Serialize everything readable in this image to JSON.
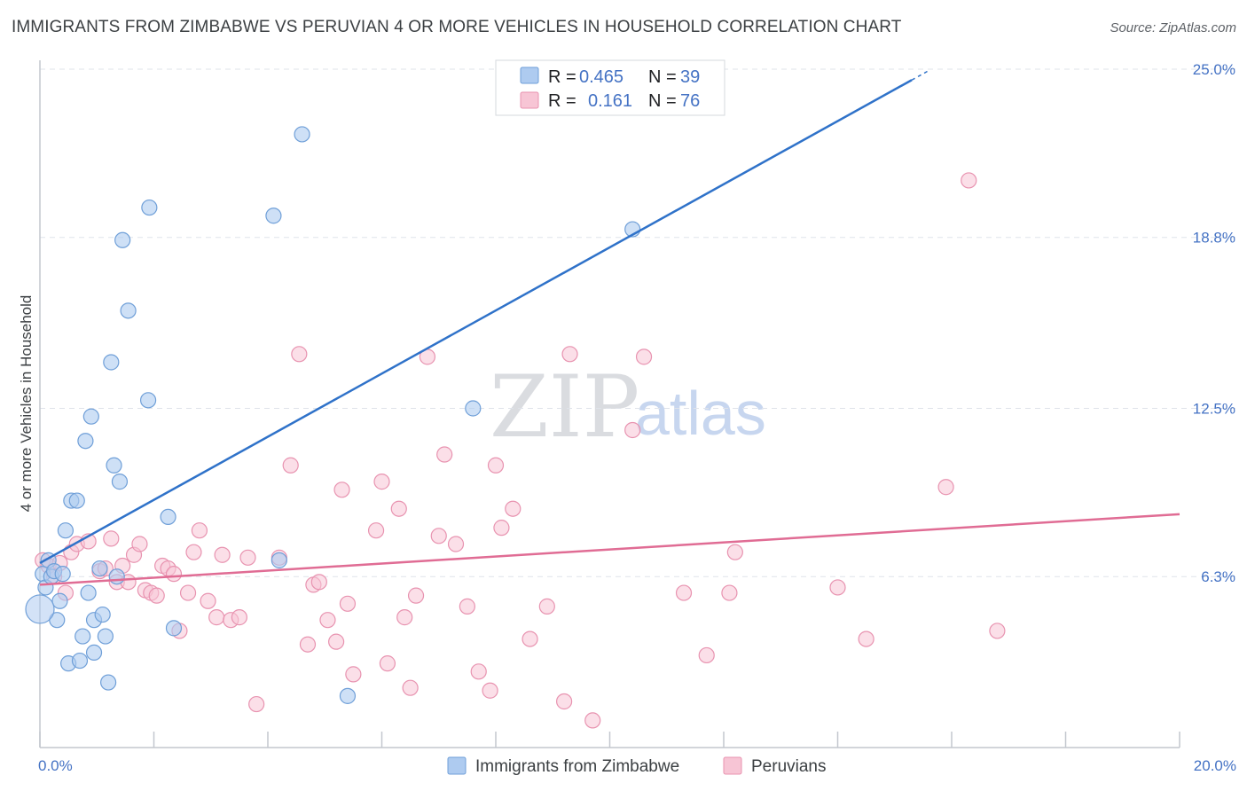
{
  "header": {
    "title": "IMMIGRANTS FROM ZIMBABWE VS PERUVIAN 4 OR MORE VEHICLES IN HOUSEHOLD CORRELATION CHART",
    "source": "Source: ZipAtlas.com"
  },
  "watermark": {
    "zip": "ZIP",
    "atlas": "atlas"
  },
  "legend_top": [
    {
      "r_label": "R =",
      "r_value": "0.465",
      "n_label": "N =",
      "n_value": "39"
    },
    {
      "r_label": "R =",
      "r_value": "0.161",
      "n_label": "N =",
      "n_value": "76"
    }
  ],
  "chart_data": {
    "type": "scatter",
    "title": "IMMIGRANTS FROM ZIMBABWE VS PERUVIAN 4 OR MORE VEHICLES IN HOUSEHOLD CORRELATION CHART",
    "xlabel": "",
    "ylabel": "4 or more Vehicles in Household",
    "xlim": [
      0,
      20
    ],
    "ylim": [
      0,
      25.0
    ],
    "x_tick_labels": [
      "0.0%",
      "20.0%"
    ],
    "y_tick_values": [
      6.3,
      12.5,
      18.8,
      25.0
    ],
    "y_tick_labels": [
      "6.3%",
      "12.5%",
      "18.8%",
      "25.0%"
    ],
    "grid": true,
    "legend_position": "top-center",
    "colors": {
      "zimbabwe_fill": "#aecbf0",
      "zimbabwe_stroke": "#6f9fd8",
      "zimbabwe_line": "#2f72c9",
      "peru_fill": "#f7c5d5",
      "peru_stroke": "#e893b0",
      "peru_line": "#e06c94",
      "grid": "#dfe3ea",
      "axis": "#c3c7ce"
    },
    "series": [
      {
        "name": "Immigrants from Zimbabwe",
        "R": 0.465,
        "N": 39,
        "trend": {
          "x": [
            0,
            15.3
          ],
          "y": [
            6.8,
            24.6
          ]
        },
        "points": [
          [
            0.05,
            6.4
          ],
          [
            0.1,
            5.9
          ],
          [
            0.15,
            6.9
          ],
          [
            0.2,
            6.3
          ],
          [
            0.25,
            6.5
          ],
          [
            0.3,
            4.7
          ],
          [
            0.35,
            5.4
          ],
          [
            0.4,
            6.4
          ],
          [
            0.45,
            8.0
          ],
          [
            0.5,
            3.1
          ],
          [
            0.55,
            9.1
          ],
          [
            0.65,
            9.1
          ],
          [
            0.7,
            3.2
          ],
          [
            0.75,
            4.1
          ],
          [
            0.8,
            11.3
          ],
          [
            0.85,
            5.7
          ],
          [
            0.9,
            12.2
          ],
          [
            0.95,
            4.7
          ],
          [
            0.95,
            3.5
          ],
          [
            1.05,
            6.6
          ],
          [
            1.1,
            4.9
          ],
          [
            1.15,
            4.1
          ],
          [
            1.2,
            2.4
          ],
          [
            1.25,
            14.2
          ],
          [
            1.3,
            10.4
          ],
          [
            1.35,
            6.3
          ],
          [
            1.4,
            9.8
          ],
          [
            1.45,
            18.7
          ],
          [
            1.55,
            16.1
          ],
          [
            1.9,
            12.8
          ],
          [
            1.92,
            19.9
          ],
          [
            2.25,
            8.5
          ],
          [
            2.35,
            4.4
          ],
          [
            4.1,
            19.6
          ],
          [
            4.2,
            6.9
          ],
          [
            4.6,
            22.6
          ],
          [
            5.4,
            1.9
          ],
          [
            7.6,
            12.5
          ],
          [
            10.4,
            19.1
          ]
        ]
      },
      {
        "name": "Peruvians",
        "R": 0.161,
        "N": 76,
        "trend": {
          "x": [
            0,
            20
          ],
          "y": [
            6.0,
            8.6
          ]
        },
        "points": [
          [
            0.05,
            6.9
          ],
          [
            0.15,
            6.7
          ],
          [
            0.25,
            6.3
          ],
          [
            0.35,
            6.8
          ],
          [
            0.45,
            5.7
          ],
          [
            0.55,
            7.2
          ],
          [
            0.65,
            7.5
          ],
          [
            0.85,
            7.6
          ],
          [
            1.05,
            6.5
          ],
          [
            1.15,
            6.6
          ],
          [
            1.25,
            7.7
          ],
          [
            1.35,
            6.1
          ],
          [
            1.45,
            6.7
          ],
          [
            1.55,
            6.1
          ],
          [
            1.65,
            7.1
          ],
          [
            1.75,
            7.5
          ],
          [
            1.85,
            5.8
          ],
          [
            1.95,
            5.7
          ],
          [
            2.05,
            5.6
          ],
          [
            2.15,
            6.7
          ],
          [
            2.25,
            6.6
          ],
          [
            2.35,
            6.4
          ],
          [
            2.45,
            4.3
          ],
          [
            2.6,
            5.7
          ],
          [
            2.7,
            7.2
          ],
          [
            2.8,
            8.0
          ],
          [
            2.95,
            5.4
          ],
          [
            3.1,
            4.8
          ],
          [
            3.2,
            7.1
          ],
          [
            3.35,
            4.7
          ],
          [
            3.5,
            4.8
          ],
          [
            3.65,
            7.0
          ],
          [
            3.8,
            1.6
          ],
          [
            4.2,
            7.0
          ],
          [
            4.4,
            10.4
          ],
          [
            4.55,
            14.5
          ],
          [
            4.7,
            3.8
          ],
          [
            4.8,
            6.0
          ],
          [
            4.9,
            6.1
          ],
          [
            5.05,
            4.7
          ],
          [
            5.2,
            3.9
          ],
          [
            5.3,
            9.5
          ],
          [
            5.4,
            5.3
          ],
          [
            5.5,
            2.7
          ],
          [
            5.9,
            8.0
          ],
          [
            6.0,
            9.8
          ],
          [
            6.1,
            3.1
          ],
          [
            6.3,
            8.8
          ],
          [
            6.4,
            4.8
          ],
          [
            6.5,
            2.2
          ],
          [
            6.6,
            5.6
          ],
          [
            6.8,
            14.4
          ],
          [
            7.0,
            7.8
          ],
          [
            7.1,
            10.8
          ],
          [
            7.3,
            7.5
          ],
          [
            7.5,
            5.2
          ],
          [
            7.7,
            2.8
          ],
          [
            7.9,
            2.1
          ],
          [
            8.0,
            10.4
          ],
          [
            8.1,
            8.1
          ],
          [
            8.3,
            8.8
          ],
          [
            8.6,
            4.0
          ],
          [
            8.9,
            5.2
          ],
          [
            9.2,
            1.7
          ],
          [
            9.3,
            14.5
          ],
          [
            9.7,
            1.0
          ],
          [
            10.4,
            11.7
          ],
          [
            10.6,
            14.4
          ],
          [
            11.3,
            5.7
          ],
          [
            11.7,
            3.4
          ],
          [
            12.1,
            5.7
          ],
          [
            12.2,
            7.2
          ],
          [
            14.0,
            5.9
          ],
          [
            14.5,
            4.0
          ],
          [
            15.9,
            9.6
          ],
          [
            16.3,
            20.9
          ],
          [
            16.8,
            4.3
          ]
        ]
      }
    ]
  },
  "legend_bottom": [
    {
      "label": "Immigrants from Zimbabwe"
    },
    {
      "label": "Peruvians"
    }
  ]
}
